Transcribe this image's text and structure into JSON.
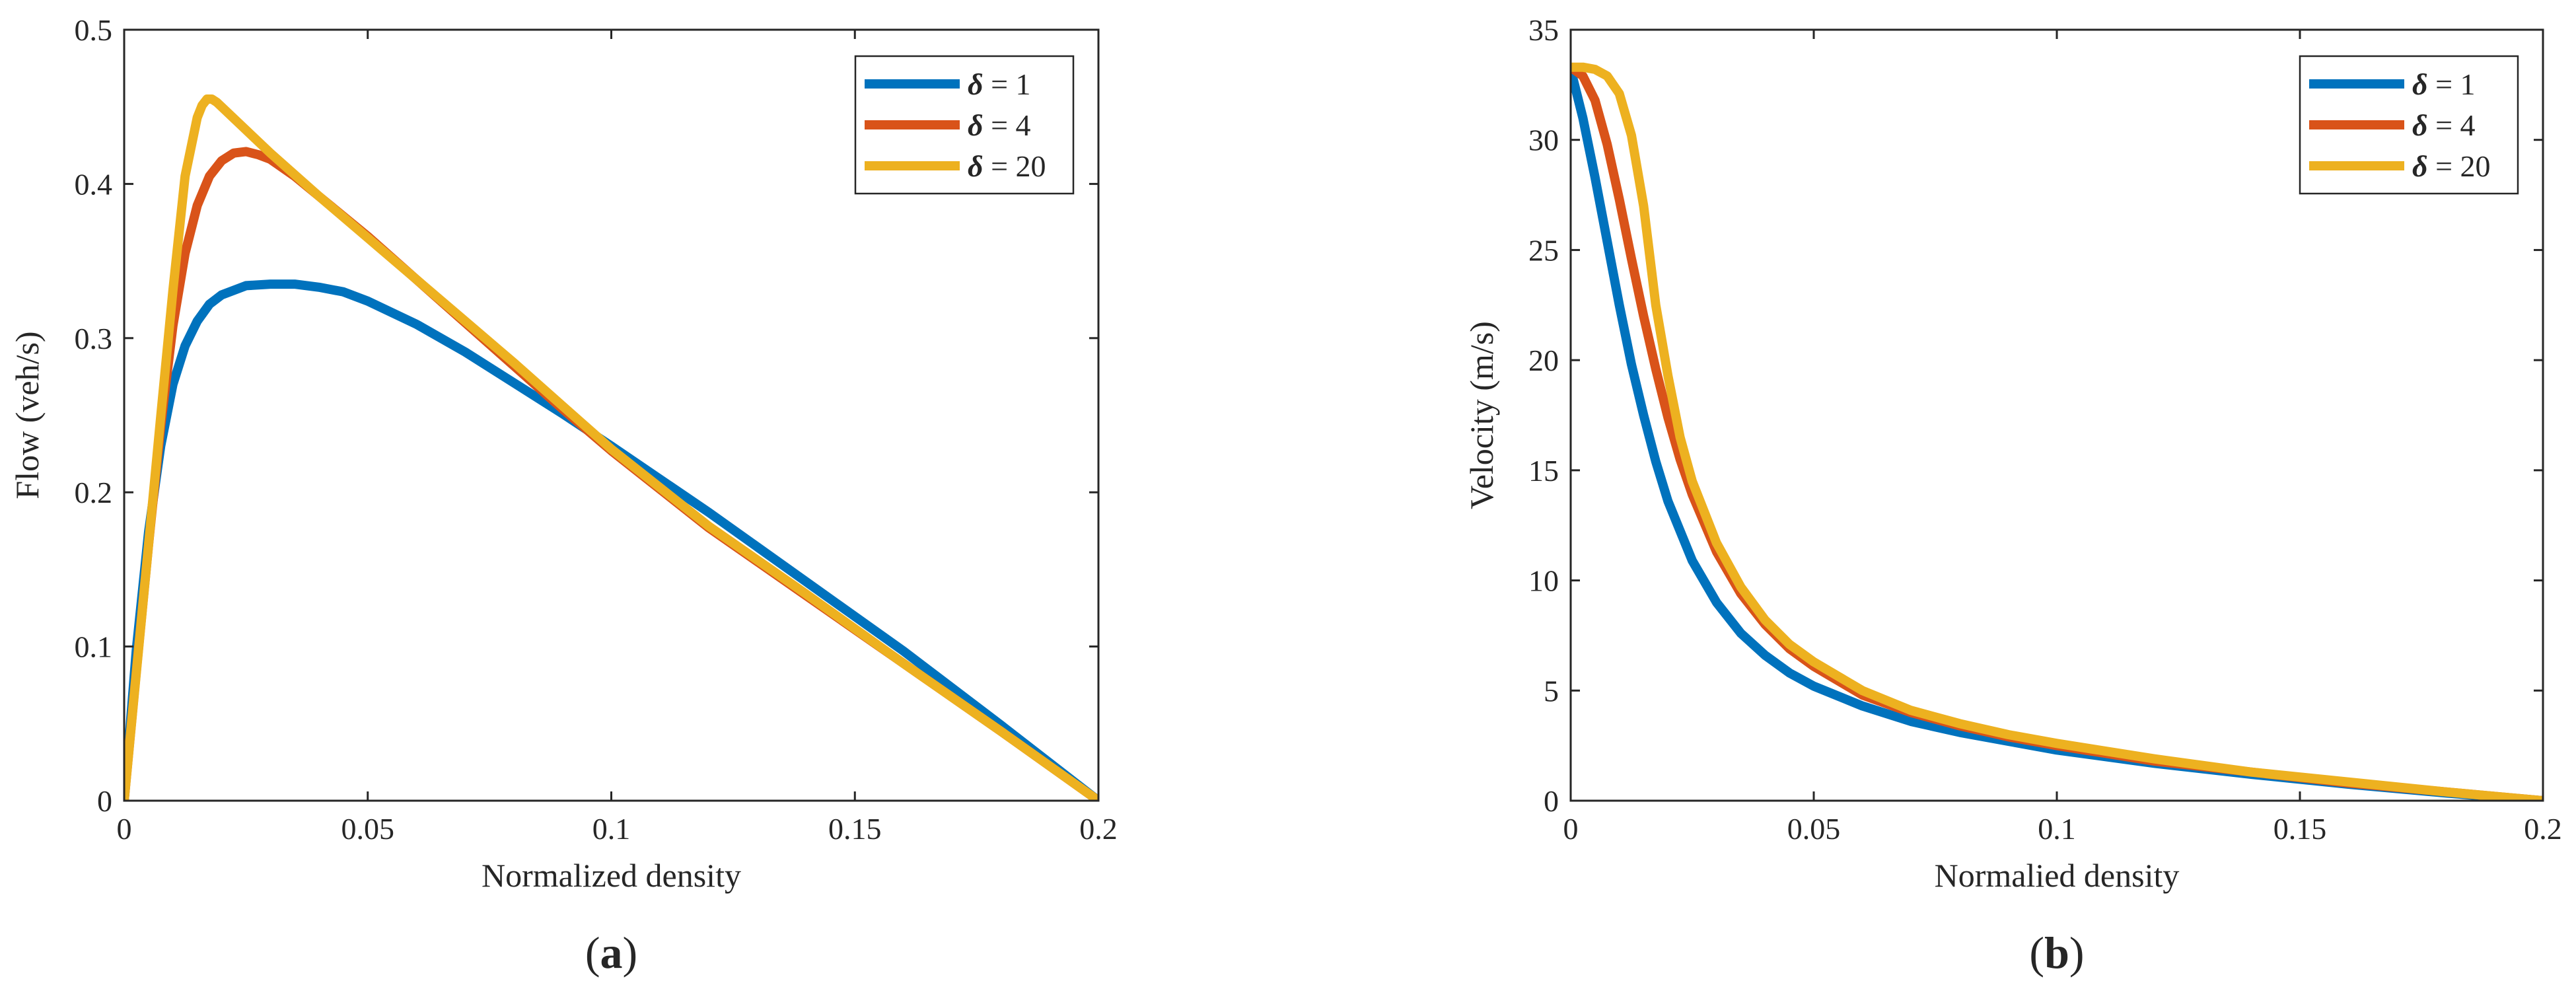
{
  "chart_data": [
    {
      "type": "line",
      "panel_label": "(a)",
      "panel_letter": "a",
      "xlabel": "Normalized density",
      "ylabel": "Flow (veh/s)",
      "xlim": [
        0,
        0.2
      ],
      "ylim": [
        0,
        0.5
      ],
      "x_ticks": [
        0,
        0.05,
        0.1,
        0.15,
        0.2
      ],
      "x_tick_labels": [
        "0",
        "0.05",
        "0.1",
        "0.15",
        "0.2"
      ],
      "y_ticks": [
        0,
        0.1,
        0.2,
        0.3,
        0.4,
        0.5
      ],
      "y_tick_labels": [
        "0",
        "0.1",
        "0.2",
        "0.3",
        "0.4",
        "0.5"
      ],
      "legend_position": "top-right",
      "series": [
        {
          "name": "δ = 1",
          "symbol": "δ",
          "label_rest": " = 1",
          "color": "#0072BD",
          "x": [
            0,
            0.0025,
            0.005,
            0.0075,
            0.01,
            0.0125,
            0.015,
            0.0175,
            0.02,
            0.025,
            0.03,
            0.035,
            0.04,
            0.045,
            0.05,
            0.06,
            0.07,
            0.08,
            0.09,
            0.1,
            0.12,
            0.14,
            0.16,
            0.18,
            0.2
          ],
          "y": [
            0,
            0.098,
            0.174,
            0.23,
            0.27,
            0.295,
            0.311,
            0.322,
            0.328,
            0.334,
            0.335,
            0.335,
            0.333,
            0.33,
            0.324,
            0.309,
            0.291,
            0.271,
            0.251,
            0.23,
            0.187,
            0.142,
            0.097,
            0.049,
            0
          ]
        },
        {
          "name": "δ = 4",
          "symbol": "δ",
          "label_rest": " = 4",
          "color": "#D95319",
          "x": [
            0,
            0.0025,
            0.005,
            0.0075,
            0.01,
            0.0125,
            0.015,
            0.0175,
            0.02,
            0.0225,
            0.025,
            0.0275,
            0.03,
            0.035,
            0.04,
            0.05,
            0.06,
            0.07,
            0.08,
            0.09,
            0.1,
            0.12,
            0.14,
            0.16,
            0.18,
            0.2
          ],
          "y": [
            0,
            0.084,
            0.166,
            0.243,
            0.308,
            0.355,
            0.386,
            0.405,
            0.415,
            0.42,
            0.421,
            0.419,
            0.416,
            0.405,
            0.392,
            0.366,
            0.338,
            0.31,
            0.282,
            0.254,
            0.227,
            0.177,
            0.133,
            0.089,
            0.045,
            0
          ]
        },
        {
          "name": "δ = 20",
          "symbol": "δ",
          "label_rest": " = 20",
          "color": "#EDB120",
          "x": [
            0,
            0.0025,
            0.005,
            0.0075,
            0.01,
            0.0125,
            0.015,
            0.016,
            0.017,
            0.018,
            0.019,
            0.02,
            0.025,
            0.03,
            0.04,
            0.05,
            0.06,
            0.07,
            0.08,
            0.09,
            0.1,
            0.12,
            0.14,
            0.16,
            0.18,
            0.2
          ],
          "y": [
            0,
            0.083,
            0.166,
            0.249,
            0.331,
            0.405,
            0.443,
            0.451,
            0.455,
            0.455,
            0.453,
            0.45,
            0.435,
            0.42,
            0.392,
            0.365,
            0.338,
            0.311,
            0.284,
            0.256,
            0.228,
            0.178,
            0.134,
            0.089,
            0.045,
            0
          ]
        }
      ]
    },
    {
      "type": "line",
      "panel_label": "(b)",
      "panel_letter": "b",
      "xlabel": "Normalied density",
      "ylabel": "Velocity (m/s)",
      "xlim": [
        0,
        0.2
      ],
      "ylim": [
        0,
        35
      ],
      "x_ticks": [
        0,
        0.05,
        0.1,
        0.15,
        0.2
      ],
      "x_tick_labels": [
        "0",
        "0.05",
        "0.1",
        "0.15",
        "0.2"
      ],
      "y_ticks": [
        0,
        5,
        10,
        15,
        20,
        25,
        30,
        35
      ],
      "y_tick_labels": [
        "0",
        "5",
        "10",
        "15",
        "20",
        "25",
        "30",
        "35"
      ],
      "legend_position": "top-right",
      "series": [
        {
          "name": "δ = 1",
          "symbol": "δ",
          "label_rest": " = 1",
          "color": "#0072BD",
          "x": [
            0,
            0.0025,
            0.005,
            0.0075,
            0.01,
            0.0125,
            0.015,
            0.0175,
            0.02,
            0.025,
            0.03,
            0.035,
            0.04,
            0.045,
            0.05,
            0.06,
            0.07,
            0.08,
            0.09,
            0.1,
            0.12,
            0.14,
            0.16,
            0.18,
            0.2
          ],
          "y": [
            33.2,
            31.0,
            28.3,
            25.4,
            22.5,
            19.8,
            17.5,
            15.4,
            13.6,
            10.9,
            9.0,
            7.6,
            6.6,
            5.8,
            5.2,
            4.3,
            3.6,
            3.1,
            2.7,
            2.3,
            1.7,
            1.2,
            0.75,
            0.35,
            0
          ]
        },
        {
          "name": "δ = 4",
          "symbol": "δ",
          "label_rest": " = 4",
          "color": "#D95319",
          "x": [
            0,
            0.0025,
            0.005,
            0.0075,
            0.01,
            0.0125,
            0.015,
            0.0175,
            0.02,
            0.0225,
            0.025,
            0.03,
            0.035,
            0.04,
            0.045,
            0.05,
            0.06,
            0.07,
            0.08,
            0.09,
            0.1,
            0.12,
            0.14,
            0.16,
            0.18,
            0.2
          ],
          "y": [
            33.3,
            32.9,
            31.8,
            29.8,
            27.3,
            24.6,
            22.0,
            19.6,
            17.4,
            15.5,
            13.9,
            11.3,
            9.4,
            8.0,
            6.9,
            6.1,
            4.8,
            4.0,
            3.4,
            2.9,
            2.5,
            1.8,
            1.3,
            0.8,
            0.4,
            0
          ]
        },
        {
          "name": "δ = 20",
          "symbol": "δ",
          "label_rest": " = 20",
          "color": "#EDB120",
          "x": [
            0,
            0.0025,
            0.005,
            0.0075,
            0.01,
            0.0125,
            0.015,
            0.0175,
            0.02,
            0.0225,
            0.025,
            0.03,
            0.035,
            0.04,
            0.045,
            0.05,
            0.06,
            0.07,
            0.08,
            0.09,
            0.1,
            0.12,
            0.14,
            0.16,
            0.18,
            0.2
          ],
          "y": [
            33.3,
            33.3,
            33.2,
            32.9,
            32.1,
            30.2,
            27.0,
            22.5,
            19.3,
            16.5,
            14.5,
            11.7,
            9.7,
            8.2,
            7.1,
            6.3,
            5.0,
            4.1,
            3.5,
            3.0,
            2.6,
            1.9,
            1.3,
            0.85,
            0.4,
            0
          ]
        }
      ]
    }
  ]
}
